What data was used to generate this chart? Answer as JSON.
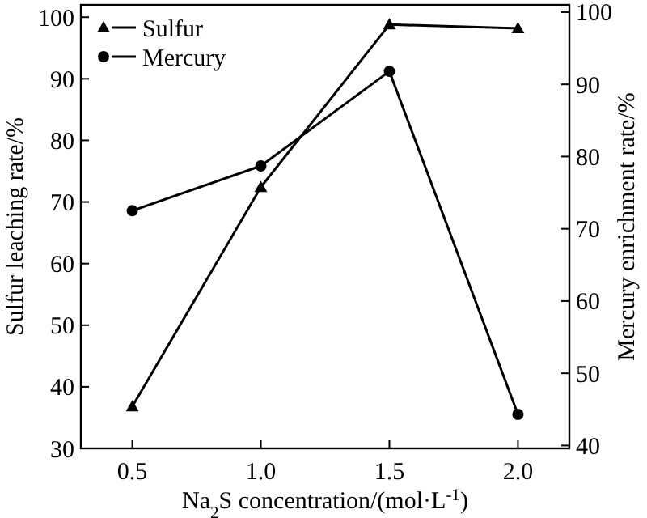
{
  "chart_data": {
    "type": "line",
    "xlabel": "Na$_{2}$S concentration/(mol·L$^{-1}$)",
    "ylabel": "Sulfur leaching rate/%",
    "y2label": "Mercury enrichment rate/%",
    "x": [
      0.5,
      1.0,
      1.5,
      2.0
    ],
    "xlim": [
      0.3,
      2.2
    ],
    "xticks": [
      {
        "value": 0.5,
        "label": "0.5"
      },
      {
        "value": 1.0,
        "label": "1.0"
      },
      {
        "value": 1.5,
        "label": "1.5"
      },
      {
        "value": 2.0,
        "label": "2.0"
      }
    ],
    "ylim": [
      30,
      102
    ],
    "yticks": [
      30,
      40,
      50,
      60,
      70,
      80,
      90,
      100
    ],
    "y2lim": [
      39.6,
      101
    ],
    "y2ticks": [
      40,
      50,
      60,
      70,
      80,
      90,
      100
    ],
    "series": [
      {
        "name": "Sulfur",
        "color": "#000000",
        "marker": "triangle",
        "values": [
          36.8,
          72.4,
          98.8,
          98.2
        ]
      },
      {
        "name": "Mercury",
        "color": "#000000",
        "marker": "circle",
        "axis": "y2",
        "values": [
          72.5,
          78.7,
          91.8,
          44.3
        ]
      }
    ],
    "legend": "top left",
    "grid": false,
    "line_style": "solid"
  }
}
